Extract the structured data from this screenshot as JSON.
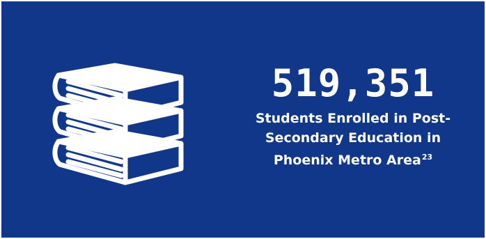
{
  "colors": {
    "background": "#10378a",
    "foreground": "#ffffff"
  },
  "icon": "stack-of-books-icon",
  "stat": {
    "value": "519,351",
    "caption_lines": [
      "Students Enrolled in Post-",
      "Secondary Education in",
      "Phoenix Metro Area"
    ],
    "footnote": "23"
  }
}
